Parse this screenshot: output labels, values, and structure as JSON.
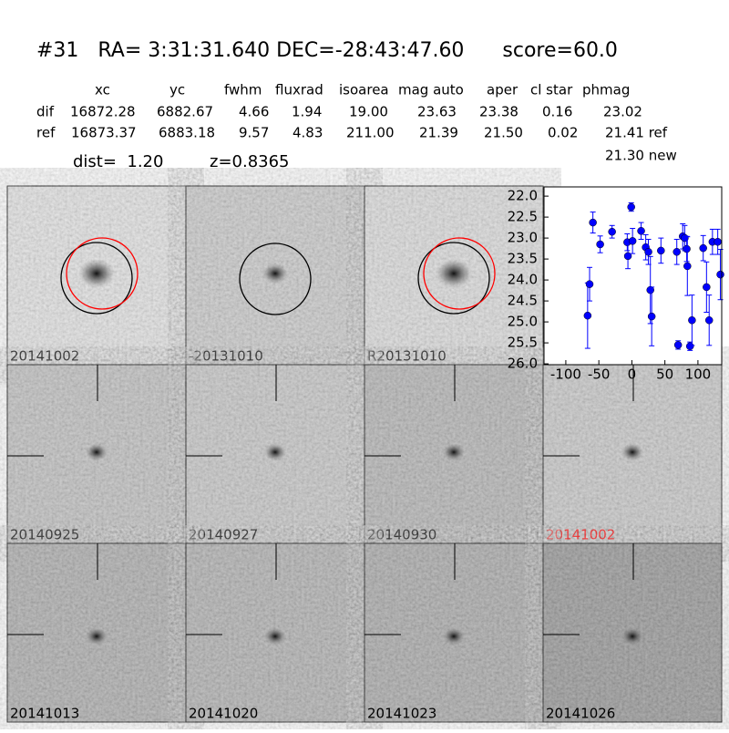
{
  "header": {
    "title": "#31   RA= 3:31:31.640 DEC=-28:43:47.60      score=60.0"
  },
  "table": {
    "columns": [
      "xc",
      "yc",
      "fwhm",
      "fluxrad",
      "isoarea",
      "mag auto",
      "aper",
      "cl star",
      "phmag"
    ],
    "rows": [
      [
        "dif",
        "16872.28",
        "6882.67",
        "4.66",
        "1.94",
        "19.00",
        "23.63",
        "23.38",
        "0.16",
        "23.02"
      ],
      [
        "ref",
        "16873.37",
        "6883.18",
        "9.57",
        "4.83",
        "211.00",
        "21.39",
        "21.50",
        "0.02",
        "21.41 ref"
      ]
    ],
    "new_phmag": "21.30 new"
  },
  "info": {
    "dist": "dist=  1.20",
    "z": "z=0.8365"
  },
  "panels": [
    {
      "label": "20141002",
      "color": "#000000"
    },
    {
      "label": "-20131010",
      "color": "#000000"
    },
    {
      "label": "R20131010",
      "color": "#000000"
    },
    {
      "label": "20140925",
      "color": "#000000"
    },
    {
      "label": "20140927",
      "color": "#000000"
    },
    {
      "label": "20140930",
      "color": "#000000"
    },
    {
      "label": "20141002",
      "color": "#ff0000"
    },
    {
      "label": "20141013",
      "color": "#000000"
    },
    {
      "label": "20141020",
      "color": "#000000"
    },
    {
      "label": "20141023",
      "color": "#000000"
    },
    {
      "label": "20141026",
      "color": "#000000"
    }
  ],
  "chart_data": {
    "type": "scatter",
    "color": "#0000ff",
    "x": [
      -67,
      -64,
      -59,
      -48,
      -30,
      -7,
      -6,
      -1,
      1,
      14,
      21,
      25,
      28,
      30,
      44,
      68,
      70,
      77,
      80,
      83,
      84,
      88,
      91,
      108,
      113,
      117,
      122,
      130,
      134
    ],
    "values": [
      24.85,
      24.1,
      22.63,
      23.15,
      22.85,
      23.1,
      23.43,
      22.26,
      23.07,
      22.83,
      23.22,
      23.33,
      24.24,
      24.87,
      23.3,
      23.33,
      25.55,
      22.96,
      23.0,
      23.26,
      23.67,
      25.58,
      24.96,
      23.24,
      24.17,
      24.96,
      23.09,
      23.09,
      23.87
    ],
    "errors": [
      0.78,
      0.4,
      0.25,
      0.2,
      0.15,
      0.2,
      0.3,
      0.1,
      0.3,
      0.2,
      0.3,
      0.3,
      0.8,
      0.7,
      0.3,
      0.3,
      0.1,
      0.3,
      0.3,
      0.3,
      0.7,
      0.1,
      0.6,
      0.3,
      0.6,
      0.6,
      0.3,
      0.3,
      0.6
    ],
    "xlim": [
      -133,
      136
    ],
    "xticks": [
      -100,
      -50,
      0,
      50,
      100
    ],
    "ylim": [
      26.02,
      21.78
    ],
    "yticks": [
      {
        "value": 22,
        "label": "22.0"
      },
      22.5,
      {
        "value": 23,
        "label": "23.0"
      },
      23.5,
      {
        "value": 24,
        "label": "24.0"
      },
      24.5,
      {
        "value": 25,
        "label": "25.0"
      },
      25.5,
      {
        "value": 26,
        "label": "26.0"
      }
    ]
  }
}
